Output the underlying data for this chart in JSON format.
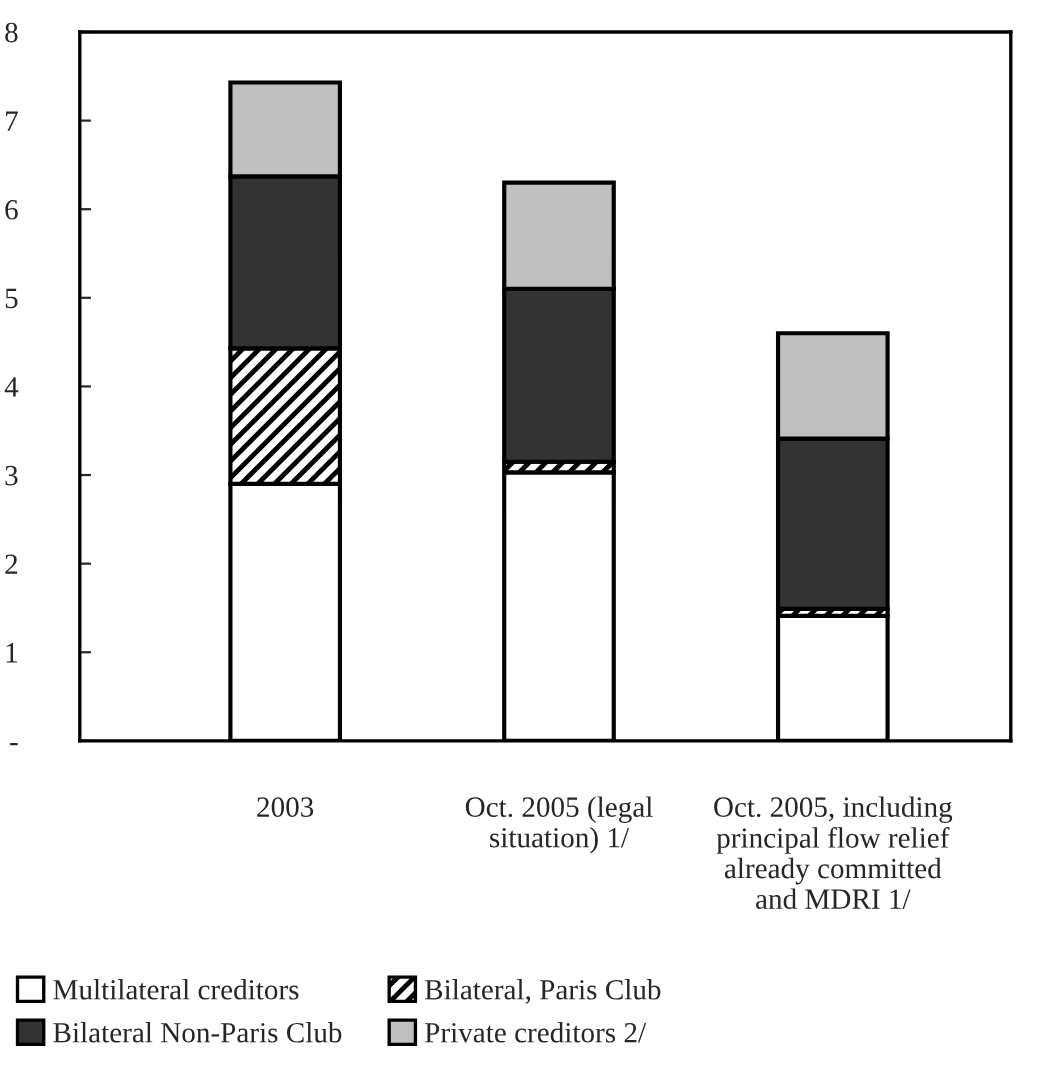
{
  "chart_data": {
    "type": "bar",
    "stacked": true,
    "categories": [
      "2003",
      "Oct. 2005 (legal\nsituation) 1/",
      "Oct. 2005, including\nprincipal flow relief\nalready committed\nand MDRI 1/"
    ],
    "series": [
      {
        "name": "Multilateral creditors",
        "color": "#ffffff",
        "values": [
          2.9,
          3.03,
          1.41
        ]
      },
      {
        "name": "Bilateral, Paris Club",
        "color": "#000000",
        "values": [
          1.53,
          0.12,
          0.08
        ]
      },
      {
        "name": "Bilateral Non-Paris Club",
        "color": "#333333",
        "values": [
          1.94,
          1.95,
          1.92
        ]
      },
      {
        "name": "Private creditors 2/",
        "color": "#c0c0c0",
        "values": [
          1.06,
          1.2,
          1.19
        ]
      }
    ],
    "ylim": [
      0,
      8
    ],
    "yticks": [
      {
        "value": 0,
        "label": "-"
      },
      1,
      2,
      3,
      4,
      5,
      6,
      7,
      8
    ],
    "grid": false,
    "legend": "bottom"
  }
}
